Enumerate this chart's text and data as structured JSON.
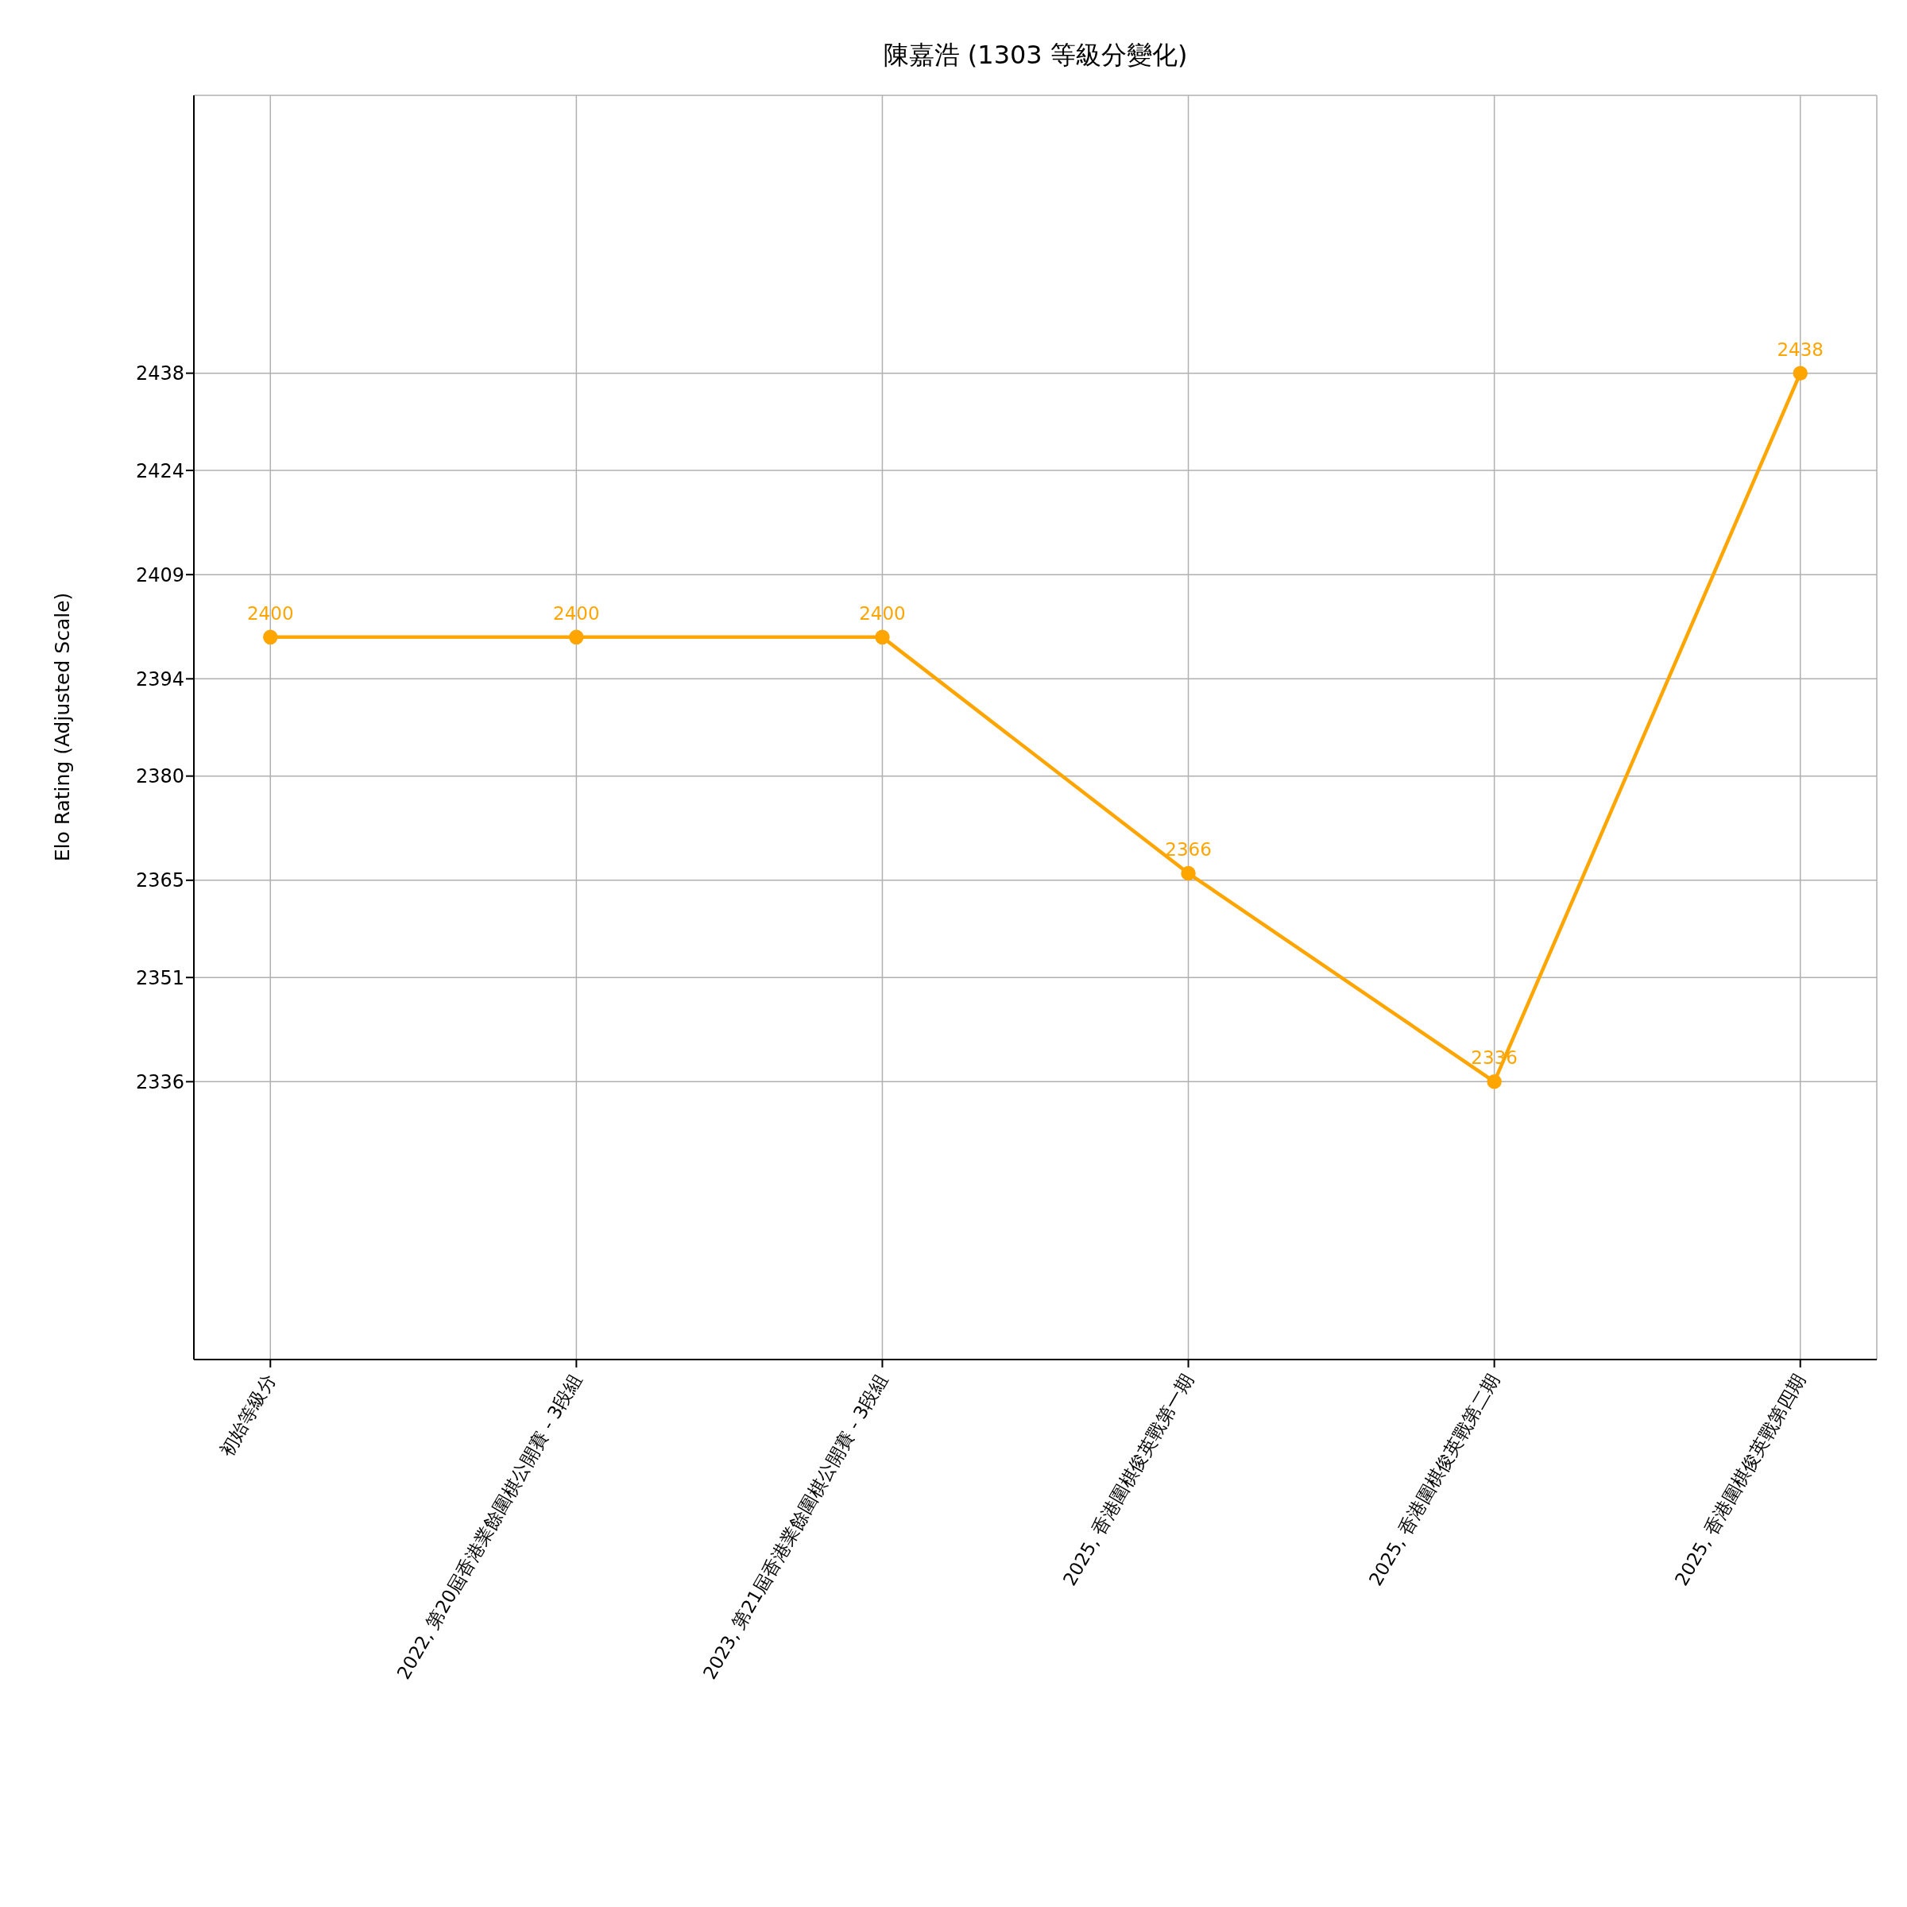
{
  "chart_data": {
    "type": "line",
    "title": "陳嘉浩 (1303 等級分變化)",
    "ylabel": "Elo Rating (Adjusted Scale)",
    "categories": [
      "初始等級分",
      "2022, 第20屆香港業餘圍棋公開賽 - 3段組",
      "2023, 第21屆香港業餘圍棋公開賽 - 3段組",
      "2025, 香港圍棋俊英戰第一期",
      "2025, 香港圍棋俊英戰第二期",
      "2025, 香港圍棋俊英戰第四期"
    ],
    "series": [
      {
        "color": "#ffa500",
        "values": [
          2400,
          2400,
          2400,
          2366,
          2336,
          2438
        ]
      }
    ],
    "ylim": [
      2296,
      2478
    ],
    "yticks": [
      2336,
      2351,
      2365,
      2380,
      2394,
      2409,
      2424,
      2438
    ],
    "grid": true,
    "marker": "circle",
    "line_style": "solid",
    "data_labels": true
  }
}
